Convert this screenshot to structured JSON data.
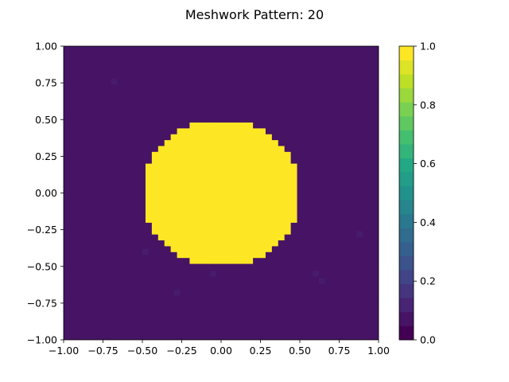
{
  "chart_data": {
    "type": "heatmap",
    "title": "Meshwork Pattern: 20",
    "colormap": "viridis",
    "grid": false,
    "xlim": [
      -1.0,
      1.0
    ],
    "ylim": [
      -1.0,
      1.0
    ],
    "x_ticks": [
      -1.0,
      -0.75,
      -0.5,
      -0.25,
      0.0,
      0.25,
      0.5,
      0.75,
      1.0
    ],
    "x_tick_labels": [
      "−1.00",
      "−0.75",
      "−0.50",
      "−0.25",
      "0.00",
      "0.25",
      "0.50",
      "0.75",
      "1.00"
    ],
    "y_ticks": [
      1.0,
      0.75,
      0.5,
      0.25,
      0.0,
      -0.25,
      -0.5,
      -0.75,
      -1.0
    ],
    "y_tick_labels": [
      "1.00",
      "0.75",
      "0.50",
      "0.25",
      "0.00",
      "−0.25",
      "−0.50",
      "−0.75",
      "−1.00"
    ],
    "grid_size": 50,
    "background_value": 0.05,
    "circle": {
      "center": [
        0.0,
        0.0
      ],
      "radius": 0.5,
      "value": 1.0
    },
    "speckles": [
      {
        "x": -0.68,
        "y": 0.76,
        "value": 0.1
      },
      {
        "x": -0.48,
        "y": -0.4,
        "value": 0.1
      },
      {
        "x": -0.28,
        "y": -0.68,
        "value": 0.1
      },
      {
        "x": -0.05,
        "y": -0.55,
        "value": 0.1
      },
      {
        "x": 0.6,
        "y": -0.55,
        "value": 0.1
      },
      {
        "x": 0.64,
        "y": -0.6,
        "value": 0.1
      },
      {
        "x": 0.88,
        "y": -0.28,
        "value": 0.1
      }
    ],
    "colorbar": {
      "range": [
        0.0,
        1.0
      ],
      "levels": 21,
      "ticks": [
        0.0,
        0.2,
        0.4,
        0.6,
        0.8,
        1.0
      ],
      "tick_labels": [
        "0.0",
        "0.2",
        "0.4",
        "0.6",
        "0.8",
        "1.0"
      ]
    }
  }
}
